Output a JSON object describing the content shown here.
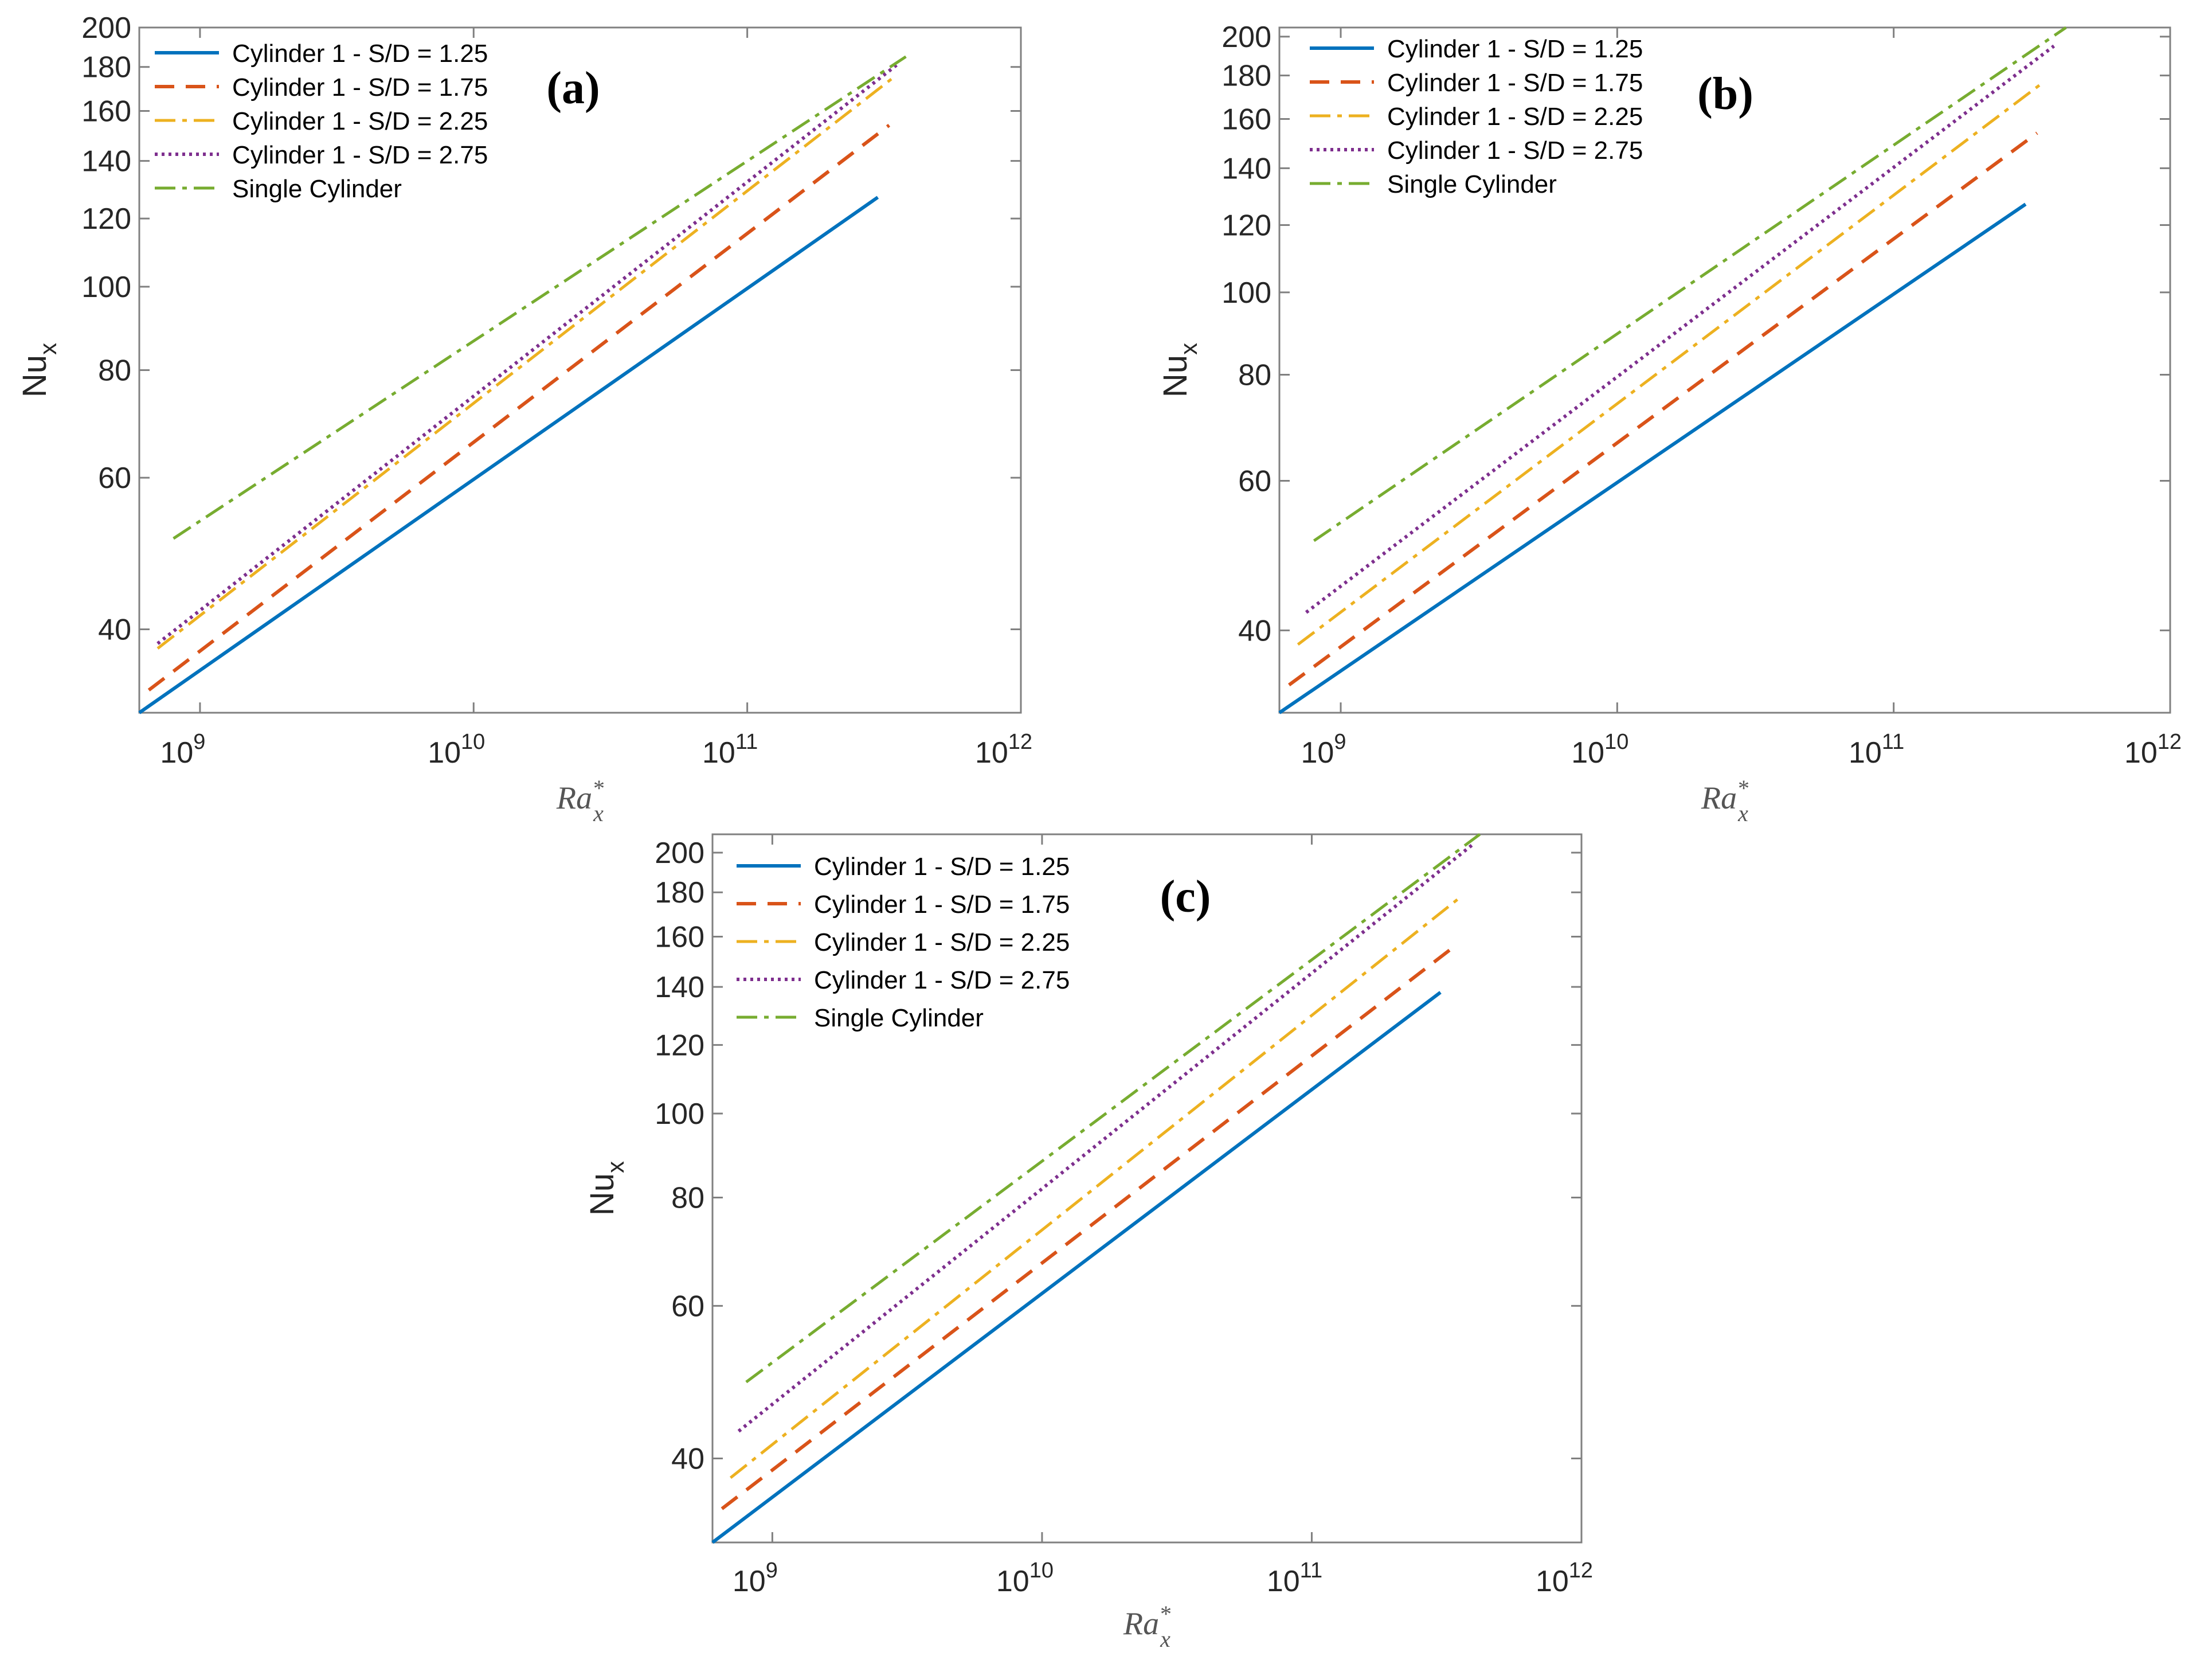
{
  "figure": {
    "series_styles": [
      {
        "color": "#0072BD",
        "dash": "",
        "width": 6
      },
      {
        "color": "#D95319",
        "dash": "34,20",
        "width": 6
      },
      {
        "color": "#EDB120",
        "dash": "36,12,8,12",
        "width": 5
      },
      {
        "color": "#7E2F8E",
        "dash": "5,7",
        "width": 6
      },
      {
        "color": "#77AC30",
        "dash": "36,12,8,12",
        "width": 5
      }
    ]
  },
  "chart_data": [
    {
      "type": "line",
      "panel_label": "(a)",
      "xscale": "log",
      "yscale": "log",
      "xlim": [
        600000000.0,
        1000000000000.0
      ],
      "ylim": [
        32,
        200
      ],
      "xlabel_base": "Ra",
      "xlabel_sup": "*",
      "xlabel_sub": "x",
      "ylabel_base": "Nu",
      "ylabel_sub": "x",
      "xticks": [
        {
          "base": "10",
          "exp": "9",
          "value": 1000000000.0
        },
        {
          "base": "10",
          "exp": "10",
          "value": 10000000000.0
        },
        {
          "base": "10",
          "exp": "11",
          "value": 100000000000.0
        },
        {
          "base": "10",
          "exp": "12",
          "value": 1000000000000.0
        }
      ],
      "yticks": [
        "40",
        "60",
        "80",
        "100",
        "120",
        "140",
        "160",
        "180",
        "200"
      ],
      "legend_position": "top-left",
      "series": [
        {
          "name": "Cylinder 1 - S/D = 1.25",
          "x": [
            600000000.0,
            300000000000.0
          ],
          "y": [
            32,
            127
          ]
        },
        {
          "name": "Cylinder 1 - S/D = 1.75",
          "x": [
            650000000.0,
            330000000000.0
          ],
          "y": [
            34,
            154
          ]
        },
        {
          "name": "Cylinder 1 - S/D = 2.25",
          "x": [
            700000000.0,
            350000000000.0
          ],
          "y": [
            38,
            176
          ]
        },
        {
          "name": "Cylinder 1 - S/D = 2.75",
          "x": [
            700000000.0,
            360000000000.0
          ],
          "y": [
            38.5,
            182
          ]
        },
        {
          "name": "Single Cylinder",
          "x": [
            800000000.0,
            380000000000.0
          ],
          "y": [
            51,
            185
          ]
        }
      ]
    },
    {
      "type": "line",
      "panel_label": "(b)",
      "xscale": "log",
      "yscale": "log",
      "xlim": [
        600000000.0,
        1000000000000.0
      ],
      "ylim": [
        32,
        205
      ],
      "xlabel_base": "Ra",
      "xlabel_sup": "*",
      "xlabel_sub": "x",
      "ylabel_base": "Nu",
      "ylabel_sub": "x",
      "xticks": [
        {
          "base": "10",
          "exp": "9",
          "value": 1000000000.0
        },
        {
          "base": "10",
          "exp": "10",
          "value": 10000000000.0
        },
        {
          "base": "10",
          "exp": "11",
          "value": 100000000000.0
        },
        {
          "base": "10",
          "exp": "12",
          "value": 1000000000000.0
        }
      ],
      "yticks": [
        "40",
        "60",
        "80",
        "100",
        "120",
        "140",
        "160",
        "180",
        "200"
      ],
      "legend_position": "top-left",
      "series": [
        {
          "name": "Cylinder 1 - S/D = 1.25",
          "x": [
            600000000.0,
            300000000000.0
          ],
          "y": [
            32,
            127
          ]
        },
        {
          "name": "Cylinder 1 - S/D = 1.75",
          "x": [
            650000000.0,
            330000000000.0
          ],
          "y": [
            34.5,
            154
          ]
        },
        {
          "name": "Cylinder 1 - S/D = 2.25",
          "x": [
            700000000.0,
            350000000000.0
          ],
          "y": [
            38.5,
            177
          ]
        },
        {
          "name": "Cylinder 1 - S/D = 2.75",
          "x": [
            750000000.0,
            380000000000.0
          ],
          "y": [
            42,
            195
          ]
        },
        {
          "name": "Single Cylinder",
          "x": [
            800000000.0,
            420000000000.0
          ],
          "y": [
            51,
            205
          ]
        }
      ]
    },
    {
      "type": "line",
      "panel_label": "(c)",
      "xscale": "log",
      "yscale": "log",
      "xlim": [
        600000000.0,
        1000000000000.0
      ],
      "ylim": [
        32,
        210
      ],
      "xlabel_base": "Ra",
      "xlabel_sup": "*",
      "xlabel_sub": "x",
      "ylabel_base": "Nu",
      "ylabel_sub": "x",
      "xticks": [
        {
          "base": "10",
          "exp": "9",
          "value": 1000000000.0
        },
        {
          "base": "10",
          "exp": "10",
          "value": 10000000000.0
        },
        {
          "base": "10",
          "exp": "11",
          "value": 100000000000.0
        },
        {
          "base": "10",
          "exp": "12",
          "value": 1000000000000.0
        }
      ],
      "yticks": [
        "40",
        "60",
        "80",
        "100",
        "120",
        "140",
        "160",
        "180",
        "200"
      ],
      "legend_position": "top-left",
      "series": [
        {
          "name": "Cylinder 1 - S/D = 1.25",
          "x": [
            600000000.0,
            300000000000.0
          ],
          "y": [
            32,
            138
          ]
        },
        {
          "name": "Cylinder 1 - S/D = 1.75",
          "x": [
            650000000.0,
            330000000000.0
          ],
          "y": [
            35,
            155
          ]
        },
        {
          "name": "Cylinder 1 - S/D = 2.25",
          "x": [
            700000000.0,
            350000000000.0
          ],
          "y": [
            38,
            177
          ]
        },
        {
          "name": "Cylinder 1 - S/D = 2.75",
          "x": [
            750000000.0,
            400000000000.0
          ],
          "y": [
            43,
            205
          ]
        },
        {
          "name": "Single Cylinder",
          "x": [
            800000000.0,
            420000000000.0
          ],
          "y": [
            49,
            210
          ]
        }
      ]
    }
  ]
}
